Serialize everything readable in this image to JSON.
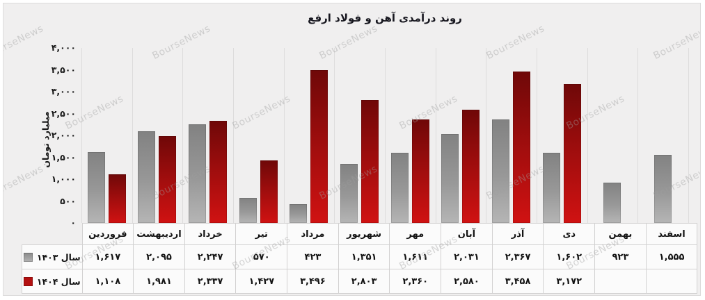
{
  "watermark_text": "BourseNews",
  "colors": {
    "background": "#f0efef",
    "frame_border": "#dcdbdb",
    "series_1403_top": "#828282",
    "series_1403_bottom": "#b5b5b5",
    "series_1404_top": "#6f0808",
    "series_1404_bottom": "#d01212",
    "table_border": "#d2d1d1",
    "table_cell_bg": "#fbfbfb"
  },
  "y_axis": {
    "title": "میلیارد تومان",
    "ticks": [
      "۴,۰۰۰",
      "۳,۵۰۰",
      "۳,۰۰۰",
      "۲,۵۰۰",
      "۲,۰۰۰",
      "۱,۵۰۰",
      "۱,۰۰۰",
      "۵۰۰",
      "۰"
    ],
    "tick_values": [
      4000,
      3500,
      3000,
      2500,
      2000,
      1500,
      1000,
      500,
      0
    ]
  },
  "chart_data": {
    "type": "bar",
    "title": "روند درآمدی آهن و فولاد ارفع",
    "xlabel": "",
    "ylabel": "میلیارد تومان",
    "ylim": [
      0,
      4000
    ],
    "grid": "vertical-only",
    "legend_position": "table-left",
    "categories": [
      "فروردین",
      "اردیبهشت",
      "خرداد",
      "تیر",
      "مرداد",
      "شهریور",
      "مهر",
      "آبان",
      "آذر",
      "دی",
      "بهمن",
      "اسفند"
    ],
    "series": [
      {
        "name": "سال ۱۴۰۳",
        "color_key": "gray",
        "values": [
          1617,
          2095,
          2247,
          570,
          423,
          1351,
          1611,
          2031,
          2367,
          1602,
          923,
          1555
        ],
        "display": [
          "۱,۶۱۷",
          "۲,۰۹۵",
          "۲,۲۴۷",
          "۵۷۰",
          "۴۲۳",
          "۱,۳۵۱",
          "۱,۶۱۱",
          "۲,۰۳۱",
          "۲,۳۶۷",
          "۱,۶۰۲",
          "۹۲۳",
          "۱,۵۵۵"
        ]
      },
      {
        "name": "سال ۱۴۰۴",
        "color_key": "red",
        "values": [
          1108,
          1981,
          2337,
          1427,
          3496,
          2803,
          2360,
          2580,
          3458,
          3172,
          null,
          null
        ],
        "display": [
          "۱,۱۰۸",
          "۱,۹۸۱",
          "۲,۳۳۷",
          "۱,۴۲۷",
          "۳,۴۹۶",
          "۲,۸۰۳",
          "۲,۳۶۰",
          "۲,۵۸۰",
          "۳,۴۵۸",
          "۳,۱۷۲",
          "",
          ""
        ]
      }
    ]
  }
}
